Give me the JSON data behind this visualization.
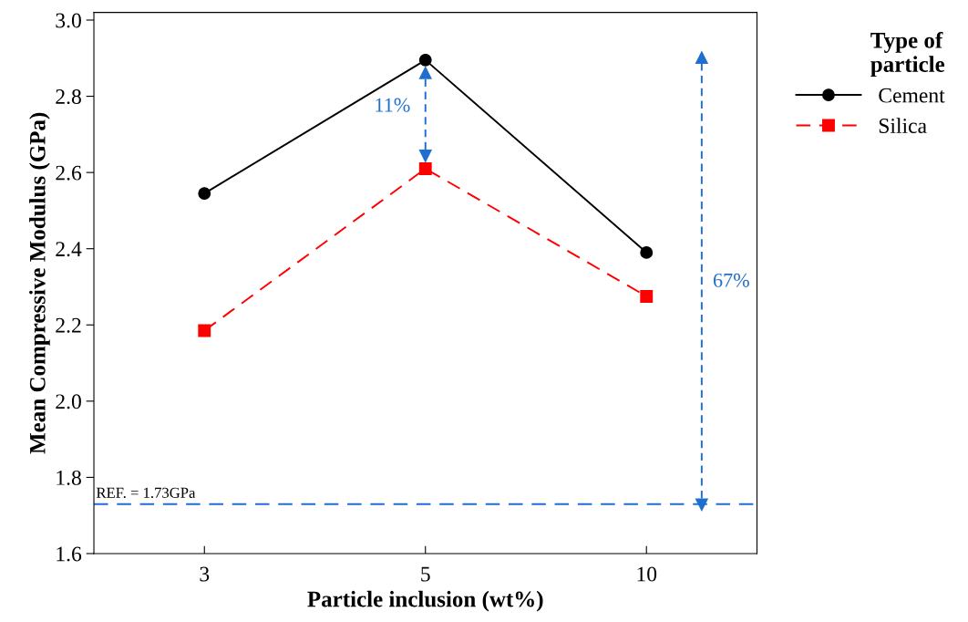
{
  "chart_data": {
    "type": "line",
    "xlabel": "Particle inclusion (wt%)",
    "ylabel": "Mean Compressive Modulus (GPa)",
    "legend_title": "Type of\nparticle",
    "categories": [
      "3",
      "5",
      "10"
    ],
    "series": [
      {
        "name": "Cement",
        "color": "#000000",
        "marker": "circle",
        "line_style": "solid",
        "values": [
          2.545,
          2.895,
          2.39
        ]
      },
      {
        "name": "Silica",
        "color": "#ff0000",
        "marker": "square",
        "line_style": "dashed",
        "values": [
          2.185,
          2.61,
          2.275
        ]
      }
    ],
    "ylim": [
      1.6,
      3.02
    ],
    "yticks": [
      1.6,
      1.8,
      {
        "value": 2,
        "label": "2.0"
      },
      2.2,
      2.4,
      2.6,
      2.8,
      {
        "value": 3,
        "label": "3.0"
      }
    ],
    "ref_lines": [
      {
        "axis": "y",
        "value": 1.73,
        "label": "REF. = 1.73GPa",
        "color": "#1f6fd0",
        "line_style": "dashed"
      }
    ],
    "annotations": [
      "11%",
      "67%"
    ],
    "grid": false,
    "legend": "top right"
  }
}
